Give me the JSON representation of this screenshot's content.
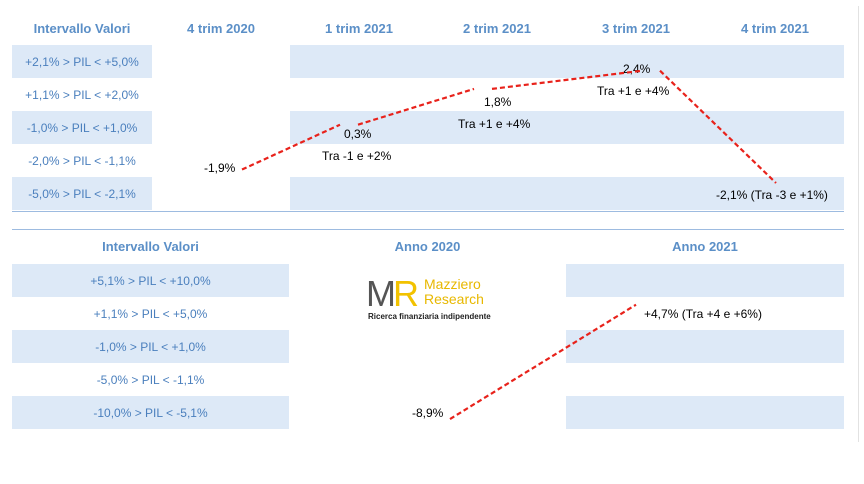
{
  "chart_data": [
    {
      "type": "table",
      "header": [
        "Intervallo Valori",
        "4 trim 2020",
        "1 trim 2021",
        "2 trim 2021",
        "3 trim 2021",
        "4 trim 2021"
      ],
      "rows": [
        "+2,1% > PIL < +5,0%",
        "+1,1% > PIL < +2,0%",
        "-1,0% > PIL < +1,0%",
        "-2,0% > PIL < -1,1%",
        "-5,0% > PIL < -2,1%"
      ],
      "series": [
        {
          "values": [
            -1.9,
            0.3,
            1.8,
            2.4,
            -2.1
          ],
          "labels": [
            "-1,9%",
            "0,3%",
            "1,8%",
            "2,4%",
            "-2,1% (Tra -3 e +1%)"
          ],
          "range_labels": [
            "",
            "Tra -1 e +2%",
            "Tra +1 e +4%",
            "Tra +1 e +4%",
            ""
          ]
        }
      ],
      "line_color": "#e8221b",
      "band_color": "#dde9f7"
    },
    {
      "type": "table",
      "header": [
        "Intervallo Valori",
        "Anno 2020",
        "Anno 2021"
      ],
      "rows": [
        "+5,1% > PIL < +10,0%",
        "+1,1% > PIL < +5,0%",
        "-1,0% > PIL < +1,0%",
        "-5,0% > PIL < -1,1%",
        "-10,0% > PIL < -5,1%"
      ],
      "series": [
        {
          "values": [
            -8.9,
            4.7
          ],
          "labels": [
            "-8,9%",
            "+4,7% (Tra +4 e +6%)"
          ]
        }
      ],
      "line_color": "#e8221b",
      "band_color": "#dde9f7"
    }
  ],
  "logo": {
    "mark": "MR",
    "name_line1": "Mazziero",
    "name_line2": "Research",
    "tagline": "Ricerca finanziaria indipendente"
  },
  "colors": {
    "header_text": "#5b8fc7",
    "row_text": "#4a7fbd",
    "band": "#dde9f7",
    "line": "#e8221b"
  }
}
